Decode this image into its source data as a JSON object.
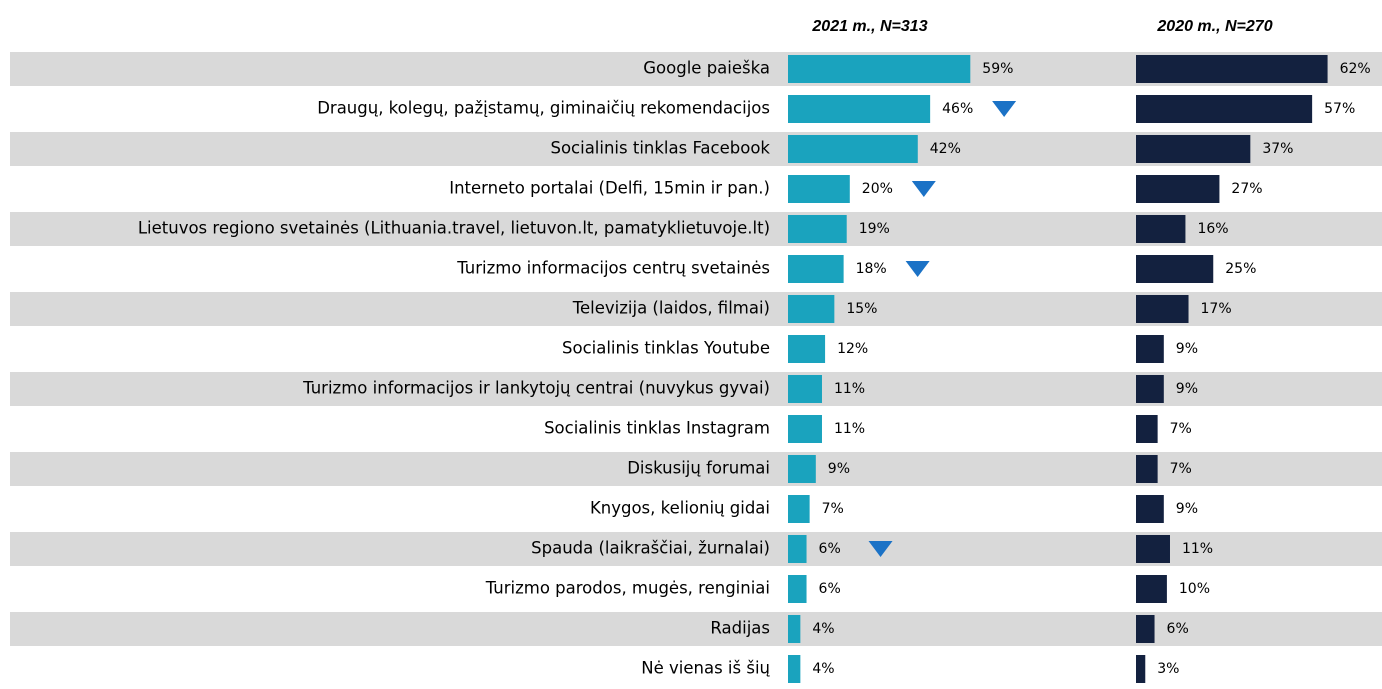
{
  "chart_data": {
    "type": "bar",
    "orientation": "horizontal",
    "categories": [
      "Google paieška",
      "Draugų, kolegų, pažįstamų, giminaičių rekomendacijos",
      "Socialinis tinklas Facebook ",
      "Interneto portalai (Delfi, 15min ir pan.)",
      "Lietuvos regiono svetainės (Lithuania.travel, lietuvon.lt, pamatyklietuvoje.lt)",
      "Turizmo informacijos centrų svetainės",
      "Televizija (laidos, filmai)",
      "Socialinis tinklas Youtube",
      "Turizmo informacijos ir lankytojų centrai (nuvykus gyvai)",
      "Socialinis tinklas Instagram",
      "Diskusijų forumai",
      "Knygos, kelionių gidai",
      "Spauda (laikraščiai, žurnalai)",
      "Turizmo parodos, mugės, renginiai",
      "Radijas",
      "Nė vienas iš šių"
    ],
    "series": [
      {
        "name": "2021 m., N=313",
        "color": "#1aa3be",
        "values": [
          59,
          46,
          42,
          20,
          19,
          18,
          15,
          12,
          11,
          11,
          9,
          7,
          6,
          6,
          4,
          4
        ],
        "value_labels": [
          "59%",
          "46%",
          "42%",
          "20%",
          "19%",
          "18%",
          "15%",
          "12%",
          "11%",
          "11%",
          "9%",
          "7%",
          "6%",
          "6%",
          "4%",
          "4%"
        ],
        "decline": [
          false,
          true,
          false,
          true,
          false,
          true,
          false,
          false,
          false,
          false,
          false,
          false,
          true,
          false,
          false,
          false
        ],
        "decline_color": "#1b72c6"
      },
      {
        "name": "2020 m., N=270",
        "color": "#13213f",
        "values": [
          62,
          57,
          37,
          27,
          16,
          25,
          17,
          9,
          9,
          7,
          7,
          9,
          11,
          10,
          6,
          3
        ],
        "value_labels": [
          "62%",
          "57%",
          "37%",
          "27%",
          "16%",
          "25%",
          "17%",
          "9%",
          "9%",
          "7%",
          "7%",
          "9%",
          "11%",
          "10%",
          "6%",
          "3%"
        ]
      }
    ],
    "row_shading": "#d9d9d9"
  }
}
